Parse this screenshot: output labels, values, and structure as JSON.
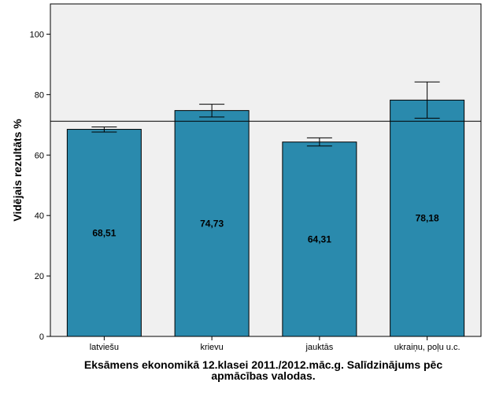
{
  "chart_data": {
    "type": "bar",
    "categories": [
      "latviešu",
      "krievu",
      "jauktās",
      "ukraiņu, poļu u.c."
    ],
    "values": [
      68.51,
      74.73,
      64.31,
      78.18
    ],
    "value_labels": [
      "68,51",
      "74,73",
      "64,31",
      "78,18"
    ],
    "error_bars": [
      {
        "low": 67.6,
        "high": 69.3
      },
      {
        "low": 72.6,
        "high": 76.8
      },
      {
        "low": 63.0,
        "high": 65.7
      },
      {
        "low": 72.2,
        "high": 84.2
      }
    ],
    "reference_line": 71.2,
    "ylim": [
      0,
      110
    ],
    "yticks": [
      0,
      20,
      40,
      60,
      80,
      100
    ],
    "ylabel": "Vidējais rezultāts %",
    "xlabel_line1": "Eksāmens ekonomikā 12.klasei 2011./2012.māc.g. Salīdzinājums pēc",
    "xlabel_line2": "apmācības valodas.",
    "bar_color": "#2a8aad",
    "plot_background": "#f0f0f0",
    "grid": false
  }
}
